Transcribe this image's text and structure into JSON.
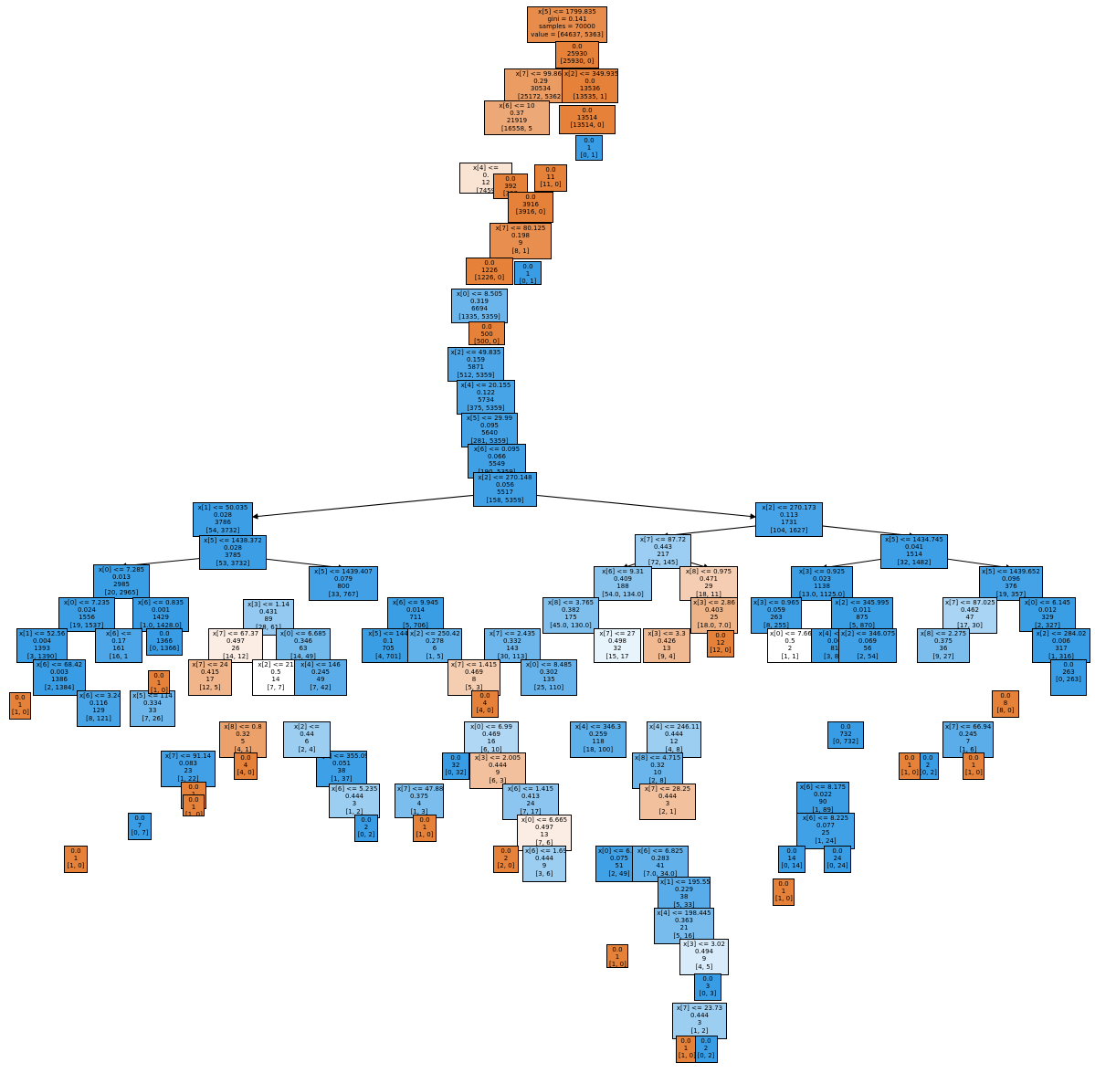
{
  "tree": {
    "nodes": [
      {
        "id": "root",
        "lines": [
          "x[5] <= 1799.835",
          "gini = 0.141",
          "samples = 70000",
          "value = [64637, 5363]"
        ],
        "color": "#e78c4a"
      },
      {
        "id": "r_leaf",
        "lines": [
          "0.0",
          "25930",
          "[25930, 0]"
        ],
        "color": "#e58139"
      },
      {
        "id": "n2",
        "lines": [
          "x[7] <= 99.865",
          "0.29",
          "30534",
          "[25172, 5362]"
        ],
        "color": "#eb9c63"
      },
      {
        "id": "n3",
        "lines": [
          "x[2] <= 349.935",
          "0.0",
          "13536",
          "[13535, 1]"
        ],
        "color": "#e58139"
      },
      {
        "id": "n4",
        "lines": [
          "x[6] <= 10",
          "0.37",
          "21919",
          "[16558, 5"
        ],
        "color": "#eda877"
      },
      {
        "id": "n5",
        "lines": [
          "0.0",
          "13514",
          "[13514, 0]"
        ],
        "color": "#e58139"
      },
      {
        "id": "n6",
        "lines": [
          "0.0",
          "1",
          "[0, 1]"
        ],
        "color": "#399de5"
      },
      {
        "id": "n7",
        "lines": [
          "x[4] <=",
          "0.",
          "12",
          "[7459"
        ],
        "color": "#f9e3d3"
      },
      {
        "id": "n8",
        "lines": [
          "0.0",
          "11",
          "[11, 0]"
        ],
        "color": "#e58139"
      },
      {
        "id": "n9",
        "lines": [
          "0.0",
          "392",
          "[392"
        ],
        "color": "#e58139"
      },
      {
        "id": "n10",
        "lines": [
          "0.0",
          "3916",
          "[3916, 0]"
        ],
        "color": "#e58139"
      },
      {
        "id": "n11",
        "lines": [
          "x[7] <= 80.125",
          "0.198",
          "9",
          "[8, 1]"
        ],
        "color": "#e88f4f"
      },
      {
        "id": "n12",
        "lines": [
          "0.0",
          "1226",
          "[1226, 0]"
        ],
        "color": "#e58139"
      },
      {
        "id": "n13",
        "lines": [
          "0.0",
          "1",
          "[0, 1]"
        ],
        "color": "#399de5"
      },
      {
        "id": "n14",
        "lines": [
          "x[0] <= 8.505",
          "0.319",
          "6694",
          "[1335, 5359]"
        ],
        "color": "#6ab6ec"
      },
      {
        "id": "n15",
        "lines": [
          "0.0",
          "500",
          "[500, 0]"
        ],
        "color": "#e58139"
      },
      {
        "id": "n16",
        "lines": [
          "x[2] <= 49.835",
          "0.159",
          "5871",
          "[512, 5359]"
        ],
        "color": "#4ca6e7"
      },
      {
        "id": "n17",
        "lines": [
          "x[4] <= 20.155",
          "0.122",
          "5734",
          "[375, 5359]"
        ],
        "color": "#47a4e7"
      },
      {
        "id": "n18",
        "lines": [
          "x[5] <= 29.99",
          "0.095",
          "5640",
          "[281, 5359]"
        ],
        "color": "#43a2e6"
      },
      {
        "id": "n19",
        "lines": [
          "x[6] <= 0.095",
          "0.066",
          "5549",
          "[190, 5359]"
        ],
        "color": "#40a0e6"
      },
      {
        "id": "n20",
        "lines": [
          "x[2] <= 270.148",
          "0.056",
          "5517",
          "[158, 5359]"
        ],
        "color": "#3fa0e6"
      },
      {
        "id": "L1",
        "lines": [
          "x[1] <= 50.035",
          "0.028",
          "3786",
          "[54, 3732]"
        ],
        "color": "#3c9ee5"
      },
      {
        "id": "R1",
        "lines": [
          "x[2] <= 270.173",
          "0.113",
          "1731",
          "[104, 1627]"
        ],
        "color": "#46a3e7"
      },
      {
        "id": "L2",
        "lines": [
          "x[5] <= 1438.372",
          "0.028",
          "3785",
          "[53, 3732]"
        ],
        "color": "#3c9ee5"
      },
      {
        "id": "L3a",
        "lines": [
          "x[0] <= 7.285",
          "0.013",
          "2985",
          "[20, 2965]"
        ],
        "color": "#3a9ee5"
      },
      {
        "id": "L3b",
        "lines": [
          "x[5] <= 1439.407",
          "0.079",
          "800",
          "[33, 767]"
        ],
        "color": "#42a1e6"
      },
      {
        "id": "R2a",
        "lines": [
          "x[7] <= 87.72",
          "0.443",
          "217",
          "[72, 145]"
        ],
        "color": "#9bcef2"
      },
      {
        "id": "R2b",
        "lines": [
          "x[5] <= 1434.745",
          "0.041",
          "1514",
          "[32, 1482]"
        ],
        "color": "#3d9fe6"
      },
      {
        "id": "L4a",
        "lines": [
          "x[0] <= 7.235",
          "0.024",
          "1556",
          "[19, 1537]"
        ],
        "color": "#3b9ee5"
      },
      {
        "id": "L4b",
        "lines": [
          "x[6] <= 0.835",
          "0.001",
          "1429",
          "[1.0, 1428.0]"
        ],
        "color": "#399de5"
      },
      {
        "id": "L4c",
        "lines": [
          "x[3] <= 1.14",
          "0.431",
          "89",
          "[28, 61]"
        ],
        "color": "#94caf1"
      },
      {
        "id": "L4d",
        "lines": [
          "x[6] <= 9.945",
          "0.014",
          "711",
          "[5, 706]"
        ],
        "color": "#3a9ee5"
      },
      {
        "id": "R3a",
        "lines": [
          "x[6] <= 9.31",
          "0.409",
          "188",
          "[54.0, 134.0]"
        ],
        "color": "#89c4ef"
      },
      {
        "id": "R3b",
        "lines": [
          "x[8] <= 0.975",
          "0.471",
          "29",
          "[18, 11]"
        ],
        "color": "#f5cdb2"
      },
      {
        "id": "R3c",
        "lines": [
          "x[3] <= 0.925",
          "0.023",
          "1138",
          "[13.0, 1125.0]"
        ],
        "color": "#3b9ee5"
      },
      {
        "id": "R3d",
        "lines": [
          "x[5] <= 1439.652",
          "0.096",
          "376",
          "[19, 357]"
        ],
        "color": "#44a2e6"
      },
      {
        "id": "R4a",
        "lines": [
          "x[8] <= 3.765",
          "0.382",
          "175",
          "[45.0, 130.0]"
        ],
        "color": "#7ebfee"
      },
      {
        "id": "R4b",
        "lines": [
          "x[3] <= 2.86",
          "0.403",
          "25",
          "[18.0, 7.0]"
        ],
        "color": "#efb388"
      },
      {
        "id": "R4c",
        "lines": [
          "x[3] <= 0.965",
          "0.059",
          "263",
          "[8, 255]"
        ],
        "color": "#3fa0e6"
      },
      {
        "id": "R4d",
        "lines": [
          "x[2] <= 345.995",
          "0.011",
          "875",
          "[5, 870]"
        ],
        "color": "#3a9ee5"
      },
      {
        "id": "R4e",
        "lines": [
          "x[7] <= 87.025",
          "0.462",
          "47",
          "[17, 30]"
        ],
        "color": "#a9d4f4"
      },
      {
        "id": "R4f",
        "lines": [
          "x[0] <= 6.145",
          "0.012",
          "329",
          "[2, 327]"
        ],
        "color": "#3a9ee5"
      },
      {
        "id": "L5a",
        "lines": [
          "x[1] <= 52.56",
          "0.004",
          "1393",
          "[3, 1390]"
        ],
        "color": "#399de5"
      },
      {
        "id": "L5b",
        "lines": [
          "x[6] <=",
          "0.17",
          "161",
          "[16, 1"
        ],
        "color": "#4ca6e8"
      },
      {
        "id": "L5c",
        "lines": [
          "0.0",
          "1366",
          "[0, 1366]"
        ],
        "color": "#399de5"
      },
      {
        "id": "L5d",
        "lines": [
          "x[7] <= 67.37",
          "0.497",
          "26",
          "[14, 12]"
        ],
        "color": "#fbede3"
      },
      {
        "id": "L5e",
        "lines": [
          "x[0] <= 6.685",
          "0.346",
          "63",
          "[14, 49]"
        ],
        "color": "#72b9ec"
      },
      {
        "id": "L5f",
        "lines": [
          "x[5] <= 144",
          "0.1",
          "705",
          "[4, 701]"
        ],
        "color": "#3a9ee5"
      },
      {
        "id": "L5g",
        "lines": [
          "x[2] <= 250.42",
          "0.278",
          "6",
          "[1, 5]"
        ],
        "color": "#61b1ea"
      },
      {
        "id": "R5a",
        "lines": [
          "x[7] <= 2.435",
          "0.332",
          "143",
          "[30, 113]"
        ],
        "color": "#6eb7ec"
      },
      {
        "id": "R5b",
        "lines": [
          "x[7] <= 27",
          "0.498",
          "32",
          "[15, 17"
        ],
        "color": "#e8f4fc"
      },
      {
        "id": "R5c",
        "lines": [
          "x[3] <= 3.3",
          "0.426",
          "13",
          "[9, 4]"
        ],
        "color": "#f1b991"
      },
      {
        "id": "R5d",
        "lines": [
          "0.0",
          "12",
          "[12, 0]"
        ],
        "color": "#e58139"
      },
      {
        "id": "R5e",
        "lines": [
          "x[0] <= 7.66",
          "0.5",
          "2",
          "[1, 1]"
        ],
        "color": "#ffffff"
      },
      {
        "id": "R5f",
        "lines": [
          "x[4] <= 33",
          "0.007",
          "819",
          "[3, 816]"
        ],
        "color": "#3a9ee5"
      },
      {
        "id": "R5g",
        "lines": [
          "x[2] <= 346.075",
          "0.069",
          "56",
          "[2, 54]"
        ],
        "color": "#40a1e6"
      },
      {
        "id": "R5h",
        "lines": [
          "x[8] <= 2.275",
          "0.375",
          "36",
          "[9, 27]"
        ],
        "color": "#7bbeee"
      },
      {
        "id": "R5i",
        "lines": [
          "x[2] <= 284.02",
          "0.006",
          "317",
          "[1, 316]"
        ],
        "color": "#399de5"
      },
      {
        "id": "L6a",
        "lines": [
          "x[6] <= 68.42",
          "0.003",
          "1386",
          "[2, 1384]"
        ],
        "color": "#399de5"
      },
      {
        "id": "L6b",
        "lines": [
          "x[6] <= 3.24",
          "0.116",
          "129",
          "[8, 121]"
        ],
        "color": "#46a4e7"
      },
      {
        "id": "L6c",
        "lines": [
          "x[5] <= 114",
          "0.334",
          "33",
          "[7, 26]"
        ],
        "color": "#6eb7ec"
      },
      {
        "id": "L6d",
        "lines": [
          "x[7] <= 24",
          "0.415",
          "17",
          "[12, 5]"
        ],
        "color": "#f0b58b"
      },
      {
        "id": "L6e",
        "lines": [
          "x[2] <= 21",
          "0.5",
          "14",
          "[7, 7]"
        ],
        "color": "#ffffff"
      },
      {
        "id": "L6f",
        "lines": [
          "x[4] <= 146",
          "0.245",
          "49",
          "[7, 42]"
        ],
        "color": "#5aade9"
      },
      {
        "id": "L6g",
        "lines": [
          "0.0",
          "1",
          "[1, 0]"
        ],
        "color": "#e58139"
      },
      {
        "id": "R6a",
        "lines": [
          "x[0] <= 8.485",
          "0.302",
          "135",
          "[25, 110]"
        ],
        "color": "#66b3eb"
      },
      {
        "id": "R6b",
        "lines": [
          "x[7] <= 1.415",
          "0.469",
          "8",
          "[5, 3]"
        ],
        "color": "#f5cdb0"
      },
      {
        "id": "R6c",
        "lines": [
          "0.0",
          "4",
          "[4, 0]"
        ],
        "color": "#e58139"
      },
      {
        "id": "R6d",
        "lines": [
          "0.0",
          "732",
          "[0, 732]"
        ],
        "color": "#399de5"
      },
      {
        "id": "R6e",
        "lines": [
          "x[7] <= 66.94",
          "0.245",
          "7",
          "[1, 6]"
        ],
        "color": "#5aade9"
      },
      {
        "id": "R6f",
        "lines": [
          "0.0",
          "8",
          "[8, 0]"
        ],
        "color": "#e58139"
      },
      {
        "id": "R6g",
        "lines": [
          "0.0",
          "263",
          "[0, 263]"
        ],
        "color": "#399de5"
      },
      {
        "id": "L7a",
        "lines": [
          "x[0] <= 6.99",
          "0.469",
          "16",
          "[6, 10]"
        ],
        "color": "#b0d8f5"
      },
      {
        "id": "L7b",
        "lines": [
          "x[4] <= 346.3",
          "0.259",
          "118",
          "[18, 100]"
        ],
        "color": "#5dafea"
      },
      {
        "id": "L7c",
        "lines": [
          "x[4] <= 246.11",
          "0.444",
          "12",
          "[4, 8]"
        ],
        "color": "#9ccef2"
      },
      {
        "id": "L7d",
        "lines": [
          "x[8] <= 0.8",
          "0.32",
          "5",
          "[4, 1]"
        ],
        "color": "#eca06a"
      },
      {
        "id": "L7e",
        "lines": [
          "x[7] <= 91.14",
          "0.083",
          "23",
          "[1, 22]"
        ],
        "color": "#42a1e6"
      },
      {
        "id": "L7f",
        "lines": [
          "x[1] <= 355.095",
          "0.051",
          "38",
          "[1, 37]"
        ],
        "color": "#3ea0e6"
      },
      {
        "id": "L7g",
        "lines": [
          "x[2] <=",
          "0.44",
          "6",
          "[2, 4]"
        ],
        "color": "#9ccef2"
      },
      {
        "id": "L8a",
        "lines": [
          "x[3] <= 2.005",
          "0.444",
          "9",
          "[6, 3]"
        ],
        "color": "#f2c09c"
      },
      {
        "id": "L8b",
        "lines": [
          "x[8] <= 4.715",
          "0.32",
          "10",
          "[2, 8]"
        ],
        "color": "#6ab6ec"
      },
      {
        "id": "L8c",
        "lines": [
          "x[6] <= 5.235",
          "0.444",
          "3",
          "[1, 2]"
        ],
        "color": "#9ccef2"
      },
      {
        "id": "L8d",
        "lines": [
          "x[7] <= 47.88",
          "0.375",
          "4",
          "[1, 3]"
        ],
        "color": "#7bbeee"
      },
      {
        "id": "L8e",
        "lines": [
          "0.0",
          "32",
          "[0, 32]"
        ],
        "color": "#399de5"
      },
      {
        "id": "M1",
        "lines": [
          "x[6] <= 1.415",
          "0.413",
          "24",
          "[7, 17]"
        ],
        "color": "#8bc5f0"
      },
      {
        "id": "M2",
        "lines": [
          "x[7] <= 28.25",
          "0.444",
          "3",
          "[2, 1]"
        ],
        "color": "#f2c09c"
      },
      {
        "id": "M3",
        "lines": [
          "x[0] <= 6.665",
          "0.497",
          "13",
          "[7, 6]"
        ],
        "color": "#fbede3"
      },
      {
        "id": "M4",
        "lines": [
          "0.0",
          "2",
          "[2, 0]"
        ],
        "color": "#e58139"
      },
      {
        "id": "M5",
        "lines": [
          "x[6] <= 1.695",
          "0.444",
          "9",
          "[3, 6]"
        ],
        "color": "#9ccef2"
      },
      {
        "id": "M6",
        "lines": [
          "x[0] <= 6.055",
          "0.075",
          "51",
          "[2, 49]"
        ],
        "color": "#41a1e6"
      },
      {
        "id": "M7",
        "lines": [
          "x[6] <= 6.825",
          "0.283",
          "41",
          "[7.0, 34.0]"
        ],
        "color": "#62b1ea"
      },
      {
        "id": "M8",
        "lines": [
          "x[1] <= 195.555",
          "0.229",
          "38",
          "[5, 33]"
        ],
        "color": "#57ace9"
      },
      {
        "id": "M9",
        "lines": [
          "x[4] <= 198.445",
          "0.363",
          "21",
          "[5, 16]"
        ],
        "color": "#77bced"
      },
      {
        "id": "M10",
        "lines": [
          "x[3] <= 3.02",
          "0.494",
          "9",
          "[4, 5]"
        ],
        "color": "#d7ebfa"
      },
      {
        "id": "M11",
        "lines": [
          "0.0",
          "3",
          "[0, 3]"
        ],
        "color": "#399de5"
      },
      {
        "id": "M12",
        "lines": [
          "x[7] <= 23.73",
          "0.444",
          "3",
          "[1, 2]"
        ],
        "color": "#9ccef2"
      },
      {
        "id": "M13",
        "lines": [
          "0.0",
          "2",
          "[0, 2]"
        ],
        "color": "#399de5"
      },
      {
        "id": "M14",
        "lines": [
          "0.0",
          "1",
          "[1, 0]"
        ],
        "color": "#e58139"
      },
      {
        "id": "M15",
        "lines": [
          "0.0",
          "1",
          "[1, 0]"
        ],
        "color": "#e58139"
      },
      {
        "id": "RR1",
        "lines": [
          "x[6] <= 8.175",
          "0.022",
          "90",
          "[1, 89]"
        ],
        "color": "#3b9ee5"
      },
      {
        "id": "RR2",
        "lines": [
          "x[6] <= 8.225",
          "0.077",
          "25",
          "[1, 24]"
        ],
        "color": "#41a1e6"
      },
      {
        "id": "RR3",
        "lines": [
          "0.0",
          "14",
          "[0, 14]"
        ],
        "color": "#399de5"
      },
      {
        "id": "RR4",
        "lines": [
          "0.0",
          "24",
          "[0, 24]"
        ],
        "color": "#399de5"
      },
      {
        "id": "RR5",
        "lines": [
          "0.0",
          "1",
          "[1, 0]"
        ],
        "color": "#e58139"
      },
      {
        "id": "RR6",
        "lines": [
          "0.0",
          "2",
          "[0, 2]"
        ],
        "color": "#399de5"
      },
      {
        "id": "RR7",
        "lines": [
          "0.0",
          "1",
          "[1, 0]"
        ],
        "color": "#e58139"
      },
      {
        "id": "RR8",
        "lines": [
          "0.0",
          "1",
          "[1, 0]"
        ],
        "color": "#e58139"
      },
      {
        "id": "LL1",
        "lines": [
          "0.0",
          "1",
          "[1, 0]"
        ],
        "color": "#e58139"
      },
      {
        "id": "LL2",
        "lines": [
          "0.0",
          "2",
          "[0, 2]"
        ],
        "color": "#399de5"
      },
      {
        "id": "LL3",
        "lines": [
          "0.0",
          "1",
          "[1, 0]"
        ],
        "color": "#e58139"
      },
      {
        "id": "LL4",
        "lines": [
          "0.0",
          "4",
          "[4, 0]"
        ],
        "color": "#e58139"
      },
      {
        "id": "LL5",
        "lines": [
          "0.0",
          "7",
          "[0, 7]"
        ],
        "color": "#399de5"
      },
      {
        "id": "LL6",
        "lines": [
          "0.0",
          "1",
          "[1, 0]"
        ],
        "color": "#e58139"
      },
      {
        "id": "LL7",
        "lines": [
          "0.0",
          "1",
          "[1, 0]"
        ],
        "color": "#e58139"
      },
      {
        "id": "LL8",
        "lines": [
          "0.0",
          "1",
          "[1, 0]"
        ],
        "color": "#e58139"
      }
    ],
    "edges": [
      [
        "L1",
        "L2"
      ],
      [
        "L2",
        "L3a"
      ],
      [
        "L2",
        "L3b"
      ],
      [
        "R1",
        "R2a"
      ],
      [
        "R1",
        "R2b"
      ],
      [
        "R2a",
        "R3a"
      ],
      [
        "R2a",
        "R3b"
      ],
      [
        "R2b",
        "R3c"
      ],
      [
        "R2b",
        "R3d"
      ],
      [
        "n20",
        "L1"
      ],
      [
        "n20",
        "R1"
      ]
    ]
  }
}
